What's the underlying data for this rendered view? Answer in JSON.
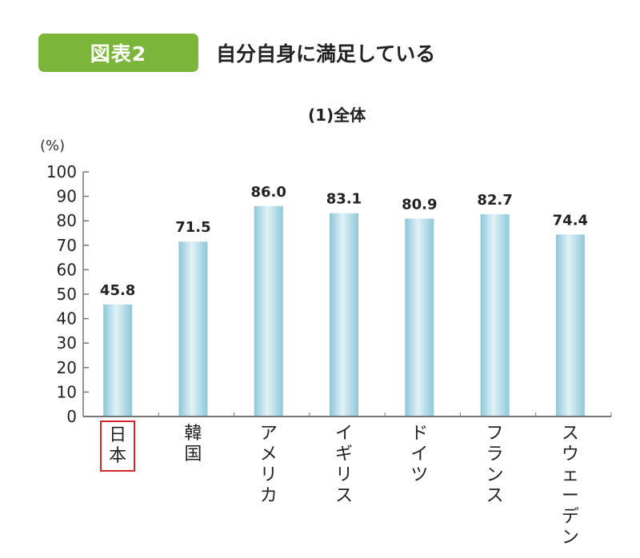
{
  "header": {
    "badge": "図表2",
    "title": "自分自身に満足している",
    "badge_color": "#7bb63a"
  },
  "chart": {
    "subtitle": "(1)全体",
    "unit": "(%)",
    "highlight_color": "#d2262c",
    "bar_color": "#a9d6e3"
  },
  "chart_data": {
    "type": "bar",
    "title": "自分自身に満足している",
    "subtitle": "(1)全体",
    "categories": [
      "日本",
      "韓国",
      "アメリカ",
      "イギリス",
      "ドイツ",
      "フランス",
      "スウェーデン"
    ],
    "values": [
      45.8,
      71.5,
      86.0,
      83.1,
      80.9,
      82.7,
      74.4
    ],
    "value_labels": [
      "45.8",
      "71.5",
      "86.0",
      "83.1",
      "80.9",
      "82.7",
      "74.4"
    ],
    "xlabel": "",
    "ylabel": "(%)",
    "ylim": [
      0,
      100
    ],
    "yticks": [
      0,
      10,
      20,
      30,
      40,
      50,
      60,
      70,
      80,
      90,
      100
    ],
    "highlighted_category": "日本",
    "grid": false,
    "legend": false
  }
}
